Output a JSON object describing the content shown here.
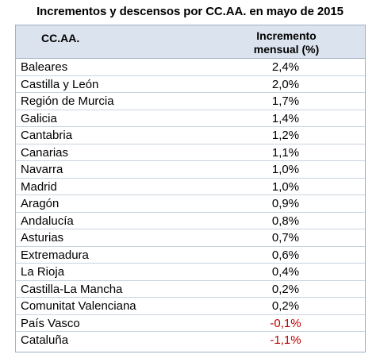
{
  "title": "Incrementos y descensos por CC.AA. en mayo de 2015",
  "header": {
    "col_region": "CC.AA.",
    "col_increment_line1": "Incremento",
    "col_increment_line2": "mensual (%)"
  },
  "rows": [
    {
      "region": "Baleares",
      "value": "2,4%"
    },
    {
      "region": "Castilla y León",
      "value": "2,0%"
    },
    {
      "region": "Región de Murcia",
      "value": "1,7%"
    },
    {
      "region": "Galicia",
      "value": "1,4%"
    },
    {
      "region": "Cantabria",
      "value": "1,2%"
    },
    {
      "region": "Canarias",
      "value": "1,1%"
    },
    {
      "region": "Navarra",
      "value": "1,0%"
    },
    {
      "region": "Madrid",
      "value": "1,0%"
    },
    {
      "region": "Aragón",
      "value": "0,9%"
    },
    {
      "region": "Andalucía",
      "value": "0,8%"
    },
    {
      "region": "Asturias",
      "value": "0,7%"
    },
    {
      "region": "Extremadura",
      "value": "0,6%"
    },
    {
      "region": "La Rioja",
      "value": "0,4%"
    },
    {
      "region": "Castilla-La Mancha",
      "value": "0,2%"
    },
    {
      "region": "Comunitat Valenciana",
      "value": "0,2%"
    },
    {
      "region": "País Vasco",
      "value": "-0,1%"
    },
    {
      "region": "Cataluña",
      "value": "-1,1%"
    }
  ],
  "colors": {
    "negative": "#c00000",
    "header_bg": "#dbe3ee"
  }
}
